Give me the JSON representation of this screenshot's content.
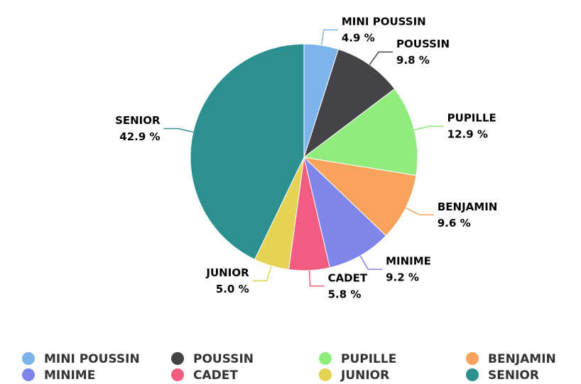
{
  "chart_data": {
    "type": "pie",
    "categories": [
      "MINI POUSSIN",
      "POUSSIN",
      "PUPILLE",
      "BENJAMIN",
      "MINIME",
      "CADET",
      "JUNIOR",
      "SENIOR"
    ],
    "values": [
      4.9,
      9.8,
      12.9,
      9.6,
      9.2,
      5.8,
      5.0,
      42.9
    ],
    "value_labels": [
      "4.9 %",
      "9.8 %",
      "12.9 %",
      "9.6 %",
      "9.2 %",
      "5.8 %",
      "5.0 %",
      "42.9 %"
    ],
    "colors": [
      "#7cb5ec",
      "#434348",
      "#90ed7d",
      "#f7a35c",
      "#8085e9",
      "#f15c80",
      "#e4d354",
      "#2b908f"
    ],
    "legend": "bottom"
  }
}
